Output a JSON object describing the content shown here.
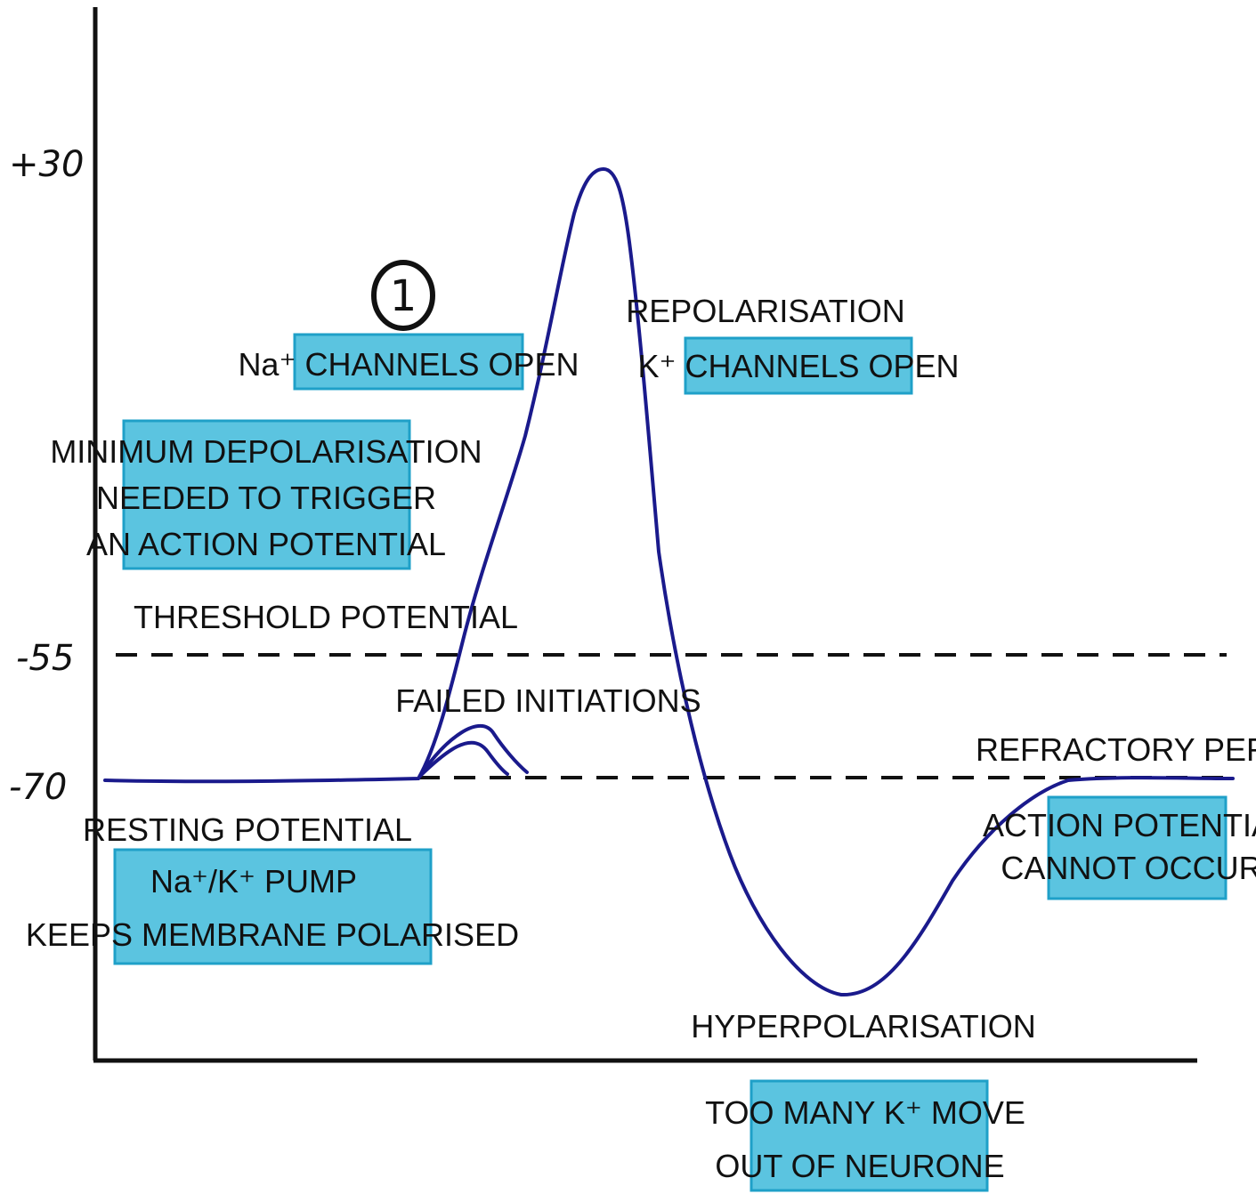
{
  "y_axis": {
    "ticks": [
      "+30",
      "-55",
      "-70"
    ]
  },
  "labels": {
    "step_marker": "1",
    "repolarisation": "REPOLARISATION",
    "threshold_potential": "THRESHOLD POTENTIAL",
    "failed_initiations": "FAILED INITIATIONS",
    "refractory_period": "REFRACTORY PERIOD",
    "resting_potential": "RESTING POTENTIAL",
    "hyperpolarisation": "HYPERPOLARISATION"
  },
  "boxes": {
    "na_channels": [
      "Na⁺ CHANNELS OPEN"
    ],
    "k_channels": [
      "K⁺ CHANNELS OPEN"
    ],
    "minimum_depolarisation": [
      "MINIMUM DEPOLARISATION",
      "NEEDED TO TRIGGER",
      "AN ACTION POTENTIAL"
    ],
    "pump": [
      "Na⁺/K⁺ PUMP",
      "KEEPS MEMBRANE POLARISED"
    ],
    "action_potential_cannot": [
      "ACTION POTENTIAL",
      "CANNOT OCCUR"
    ],
    "too_many_k": [
      "TOO MANY K⁺ MOVE",
      "OUT OF NEURONE"
    ]
  },
  "colors": {
    "curve": "#1a1a8c",
    "box_fill": "#5bc4e0",
    "box_border": "#1fa0c8"
  }
}
